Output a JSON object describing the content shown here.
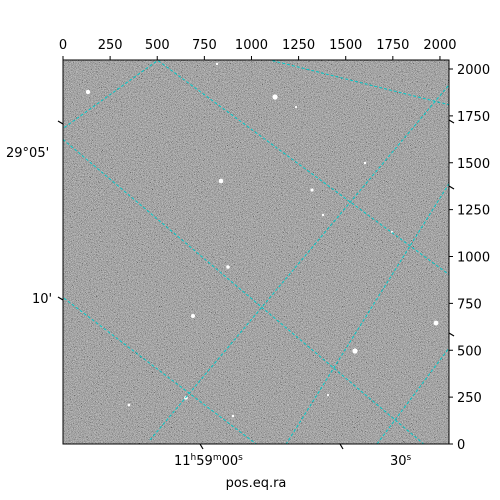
{
  "chart_data": {
    "type": "image",
    "pixel_x_ticks": [
      0,
      250,
      500,
      750,
      1000,
      1250,
      1500,
      1750,
      2000
    ],
    "pixel_y_ticks": [
      0,
      250,
      500,
      750,
      1000,
      1250,
      1500,
      1750,
      2000
    ],
    "pixel_range": [
      0,
      2048
    ],
    "ra_ticks": [
      {
        "h": "11",
        "m": "59",
        "s": "00",
        "text": "s"
      },
      {
        "s": "30",
        "text": "s"
      }
    ],
    "dec_ticks": [
      "29°05'",
      "10'"
    ],
    "xlabel": "pos.eq.ra",
    "grid_color": "#00c8c8",
    "image_tone": "grayscale-noise"
  }
}
